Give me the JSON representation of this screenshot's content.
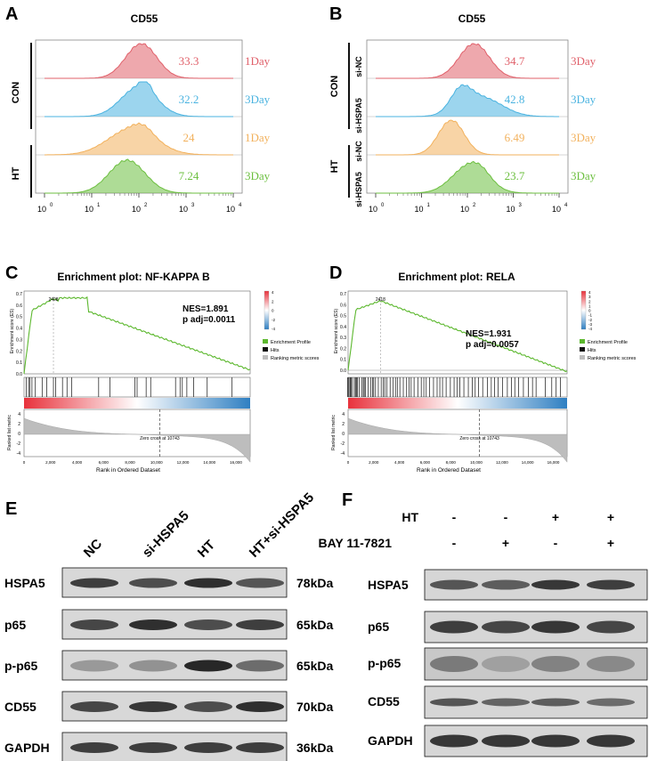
{
  "panels": {
    "A": "A",
    "B": "B",
    "C": "C",
    "D": "D",
    "E": "E",
    "F": "F"
  },
  "flow": {
    "x_ticks": [
      "10",
      "10",
      "10",
      "10",
      "10"
    ],
    "x_exp": [
      "0",
      "1",
      "2",
      "3",
      "4"
    ],
    "A": {
      "title": "CD55",
      "group_labels": [
        "CON",
        "HT"
      ],
      "tracks": [
        {
          "value": "33.3",
          "day": "1Day",
          "color": "#e0606a"
        },
        {
          "value": "32.2",
          "day": "3Day",
          "color": "#4ab3e0"
        },
        {
          "value": "24",
          "day": "1Day",
          "color": "#f2b15c"
        },
        {
          "value": "7.24",
          "day": "3Day",
          "color": "#6cbf3f"
        }
      ]
    },
    "B": {
      "title": "CD55",
      "group_labels": [
        "CON",
        "HT"
      ],
      "row_labels": [
        "si-NC",
        "si-HSPA5",
        "si-NC",
        "si-HSPA5"
      ],
      "tracks": [
        {
          "value": "34.7",
          "day": "3Day",
          "color": "#e0606a"
        },
        {
          "value": "42.8",
          "day": "3Day",
          "color": "#4ab3e0"
        },
        {
          "value": "6.49",
          "day": "3Day",
          "color": "#f2b15c"
        },
        {
          "value": "23.7",
          "day": "3Day",
          "color": "#6cbf3f"
        }
      ]
    }
  },
  "gsea": {
    "C": {
      "title": "Enrichment plot: NF-KAPPA B",
      "nes": "NES=1.891",
      "padj": "p adj=0.0011",
      "peak": "2408"
    },
    "D": {
      "title": "Enrichment plot: RELA",
      "nes": "NES=1.931",
      "padj": "p adj=0.0057",
      "peak": "2418"
    },
    "ylabel_es": "Enrichment score (ES)",
    "ylabel_rank": "Ranked list metric",
    "xlabel": "Rank in Ordered Dataset",
    "zero_cross": "Zero cross at 10743",
    "legend": [
      "Enrichment Profile",
      "Hits",
      "Ranking metric scores"
    ],
    "es_ticks_C": [
      "0.7",
      "0.6",
      "0.5",
      "0.4",
      "0.3",
      "0.2",
      "0.1",
      "0.0"
    ],
    "es_ticks_D": [
      "0.7",
      "0.6",
      "0.5",
      "0.4",
      "0.3",
      "0.2",
      "0.1",
      "0.0"
    ],
    "rank_ticks": [
      "4",
      "2",
      "0",
      "-2",
      "-4"
    ],
    "x_ticks": [
      "0",
      "2,000",
      "4,000",
      "6,000",
      "8,000",
      "10,000",
      "12,000",
      "14,000",
      "16,000"
    ],
    "colorbar_ticks": [
      "4",
      "2",
      "0",
      "-2",
      "-4"
    ],
    "colorbar_ticks_D": [
      "4",
      "3",
      "2",
      "1",
      "0",
      "-1",
      "-2",
      "-3",
      "-4"
    ]
  },
  "westernE": {
    "lanes": [
      "NC",
      "si-HSPA5",
      "HT",
      "HT+si-HSPA5"
    ],
    "rows": [
      {
        "protein": "HSPA5",
        "kda": "78kDa"
      },
      {
        "protein": "p65",
        "kda": "65kDa"
      },
      {
        "protein": "p-p65",
        "kda": "65kDa"
      },
      {
        "protein": "CD55",
        "kda": "70kDa"
      },
      {
        "protein": "GAPDH",
        "kda": "36kDa"
      }
    ]
  },
  "westernF": {
    "treatments": [
      {
        "name": "HT",
        "signs": [
          "-",
          "-",
          "+",
          "+"
        ]
      },
      {
        "name": "BAY 11-7821",
        "signs": [
          "-",
          "+",
          "-",
          "+"
        ]
      }
    ],
    "rows": [
      "HSPA5",
      "p65",
      "p-p65",
      "CD55",
      "GAPDH"
    ]
  },
  "colors": {
    "red": "#e0606a",
    "blue": "#4ab3e0",
    "orange": "#f2b15c",
    "green": "#6cbf3f",
    "es_line": "#5cb82e",
    "rank_fill": "#bdbdbd"
  }
}
